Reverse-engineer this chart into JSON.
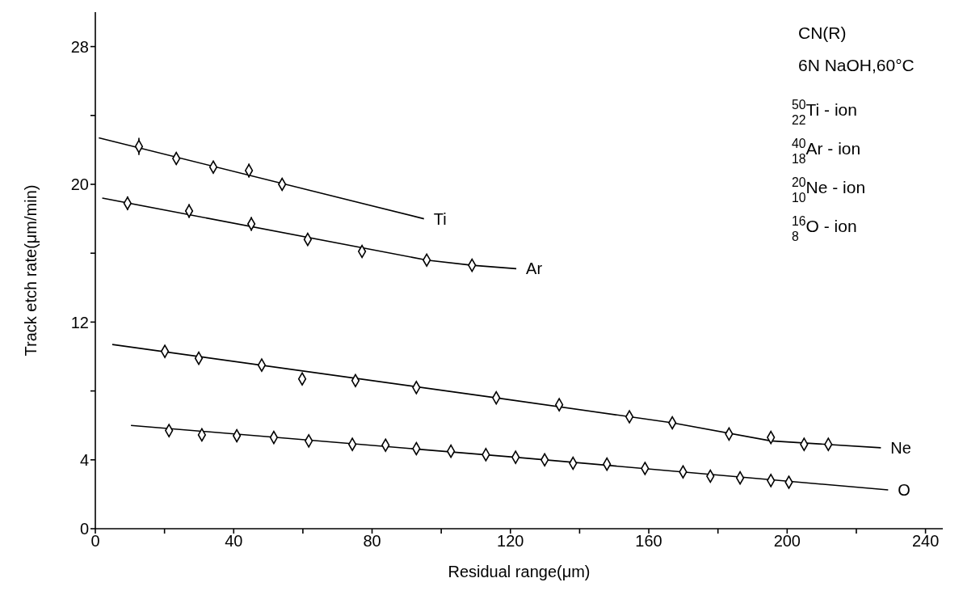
{
  "chart_data": {
    "type": "scatter",
    "xlabel": "Residual range(μm)",
    "ylabel": "Track etch rate(μm/min)",
    "xlim": [
      0,
      245
    ],
    "xticks": [
      0,
      {
        "value": 20,
        "label": null
      },
      40,
      {
        "value": 60,
        "label": null
      },
      80,
      {
        "value": 100,
        "label": null
      },
      120,
      {
        "value": 140,
        "label": null
      },
      160,
      {
        "value": 180,
        "label": null
      },
      200,
      {
        "value": 220,
        "label": null
      },
      240
    ],
    "ylim": [
      0,
      30
    ],
    "yticks": [
      0,
      4,
      {
        "value": 8,
        "label": null
      },
      12,
      {
        "value": 16,
        "label": null
      },
      20,
      {
        "value": 24,
        "label": null
      },
      28
    ],
    "grid": false,
    "marker": "diamond",
    "line_style": "solid",
    "annotations": [
      "CN(R)",
      "6N NaOH,60°C",
      "$^{50}$$_{22}$Ti - ion",
      "$^{40}$$_{18}$Ar - ion",
      "$^{20}$$_{10}$Ne - ion",
      "$^{16}$$_{8}$O - ion"
    ],
    "series": [
      {
        "color": "#000000",
        "x": [
          12.6,
          23.4,
          34.1,
          44.4,
          54.0
        ],
        "values": [
          22.2,
          21.5,
          21.0,
          20.8,
          20.0
        ],
        "errors": [
          0.5,
          0.35,
          0.35,
          0.4,
          0.35
        ]
      },
      {
        "color": "#000000",
        "x": [
          9.3,
          27.1,
          45.1,
          61.4,
          77.1,
          95.8,
          108.9
        ],
        "values": [
          18.9,
          18.45,
          17.7,
          16.8,
          16.1,
          15.6,
          15.3
        ],
        "errors": [
          0.4,
          0.4,
          0.4,
          0.3,
          0.3,
          0.3,
          0.3
        ]
      },
      {
        "color": "#000000",
        "x": [
          20.1,
          29.9,
          48.1,
          59.8,
          75.2,
          92.8,
          115.9,
          134.1,
          154.4,
          166.8,
          183.2,
          195.3,
          204.9,
          211.9
        ],
        "values": [
          10.3,
          9.9,
          9.5,
          8.7,
          8.6,
          8.2,
          7.6,
          7.2,
          6.5,
          6.15,
          5.5,
          5.3,
          4.9,
          4.9
        ],
        "errors": [
          0.3,
          0.3,
          0.3,
          0.3,
          0.3,
          0.3,
          0.3,
          0.3,
          0.3,
          0.3,
          0.3,
          0.3,
          0.3,
          0.3
        ]
      },
      {
        "color": "#000000",
        "x": [
          21.3,
          30.8,
          40.9,
          51.6,
          61.7,
          74.3,
          83.9,
          92.8,
          102.8,
          112.9,
          121.5,
          129.9,
          138.1,
          147.9,
          158.9,
          169.9,
          177.8,
          186.4,
          195.3,
          200.5
        ],
        "values": [
          5.7,
          5.45,
          5.4,
          5.3,
          5.1,
          4.9,
          4.85,
          4.65,
          4.5,
          4.3,
          4.15,
          4.0,
          3.8,
          3.75,
          3.5,
          3.3,
          3.05,
          2.95,
          2.8,
          2.7
        ],
        "errors": [
          0.35,
          0.35,
          0.35,
          0.3,
          0.3,
          0.35,
          0.3,
          0.3,
          0.3,
          0.3,
          0.35,
          0.35,
          0.3,
          0.3,
          0.3,
          0.3,
          0.3,
          0.3,
          0.35,
          0.35
        ]
      },
      {
        "type": "line",
        "name": "Ti",
        "marker": "none",
        "color": "#000000",
        "x": [
          1,
          95
        ],
        "values": [
          22.7,
          18.0
        ]
      },
      {
        "type": "line",
        "name": "Ar",
        "marker": "none",
        "color": "#000000",
        "x": [
          2,
          95.8,
          108.9,
          121.7
        ],
        "values": [
          19.2,
          15.6,
          15.3,
          15.1
        ]
      },
      {
        "type": "line",
        "name": "Ne",
        "marker": "none",
        "color": "#000000",
        "x": [
          4.9,
          115.9,
          166.8,
          195.3,
          227.1
        ],
        "values": [
          10.7,
          7.6,
          6.15,
          5.1,
          4.7
        ]
      },
      {
        "type": "line",
        "name": "O",
        "marker": "none",
        "color": "#000000",
        "x": [
          10.3,
          121.5,
          229.2
        ],
        "values": [
          6.0,
          4.15,
          2.25
        ]
      }
    ]
  }
}
